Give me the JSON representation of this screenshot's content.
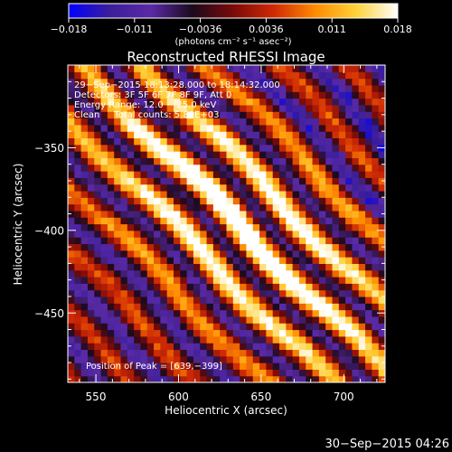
{
  "chart_data": {
    "type": "heatmap",
    "title": "Reconstructed RHESSI Image",
    "xlabel": "Heliocentric X (arcsec)",
    "ylabel": "Heliocentric Y (arcsec)",
    "xlim": [
      533,
      725
    ],
    "ylim": [
      -492,
      -300
    ],
    "x_ticks": [
      550,
      600,
      650,
      700
    ],
    "y_ticks": [
      -350,
      -400,
      -450
    ],
    "x_tick_labels": [
      "550",
      "600",
      "650",
      "700"
    ],
    "y_tick_labels": [
      "−350",
      "−400",
      "−450"
    ],
    "colorbar": {
      "range": [
        -0.018,
        0.018
      ],
      "tick_labels": [
        "−0.018",
        "−0.011",
        "−0.0036",
        "0.0036",
        "0.011",
        "0.018"
      ],
      "unit_label": "(photons cm⁻² s⁻¹ asec⁻²)",
      "colors": [
        "#0000ff",
        "#3c1e9a",
        "#5a2aa6",
        "#1b0a1e",
        "#7a0a08",
        "#d02a05",
        "#ff8c00",
        "#ffd23a",
        "#ffffff"
      ]
    },
    "annotations": [
      "29−Sep−2015 18:13:28.000 to 18:14:32.000",
      "Detectors: 3F 5F 6F 7F 8F 9F, Att 0",
      "Energy Range: 12.0 − 25.0 keV",
      "Clean     Total counts: 5.80E+03"
    ],
    "peak_label": "Position of Peak = [639,−399]",
    "peak": {
      "x": 639,
      "y": -399
    },
    "stripe_angle_deg": 135,
    "pixel_size_arcsec": 4
  },
  "footer": {
    "timestamp": "30−Sep−2015 04:26"
  }
}
